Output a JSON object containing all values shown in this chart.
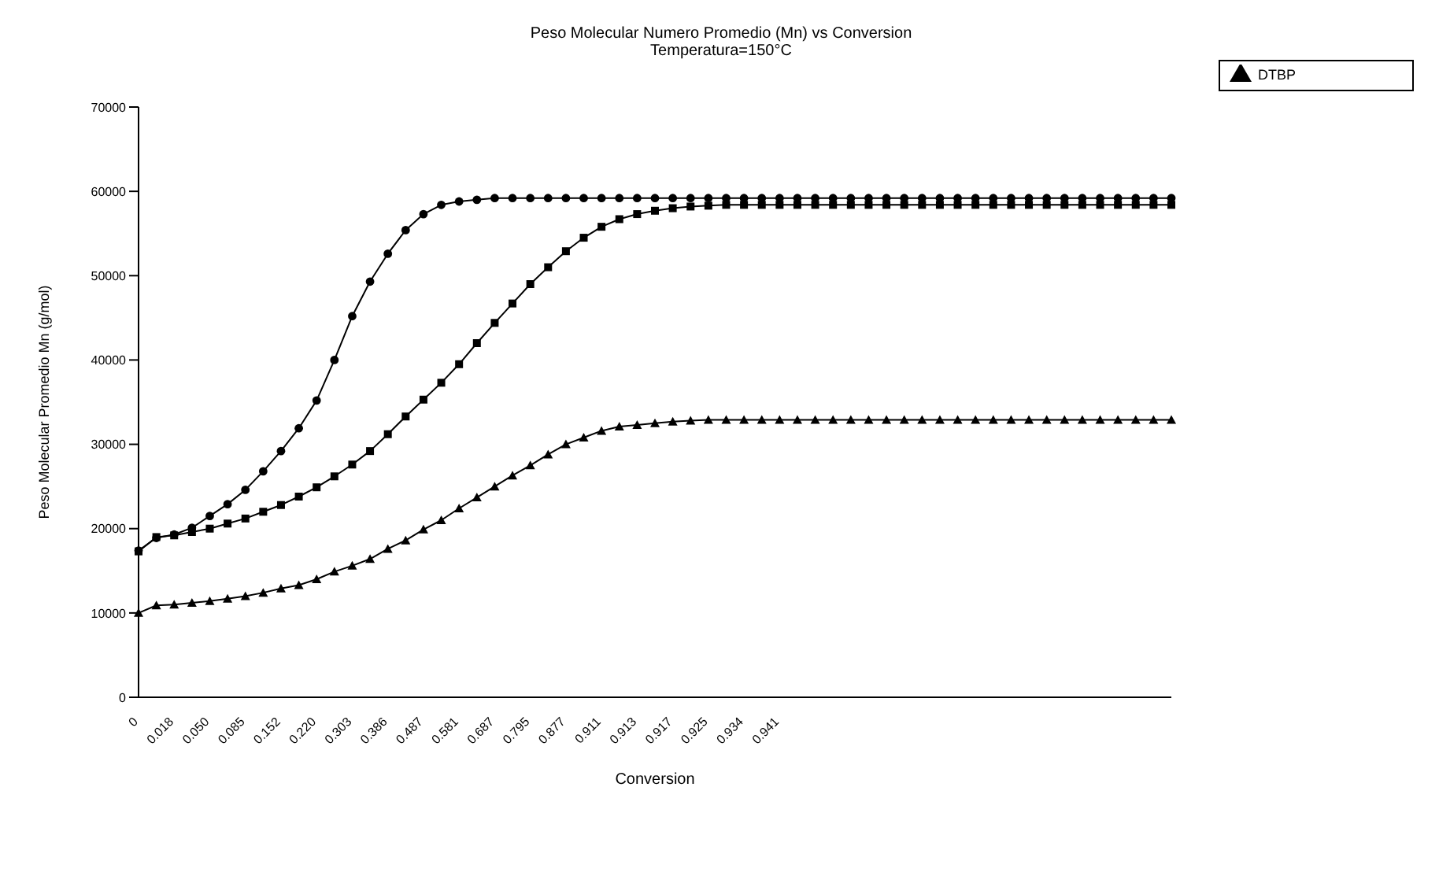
{
  "chart_data": {
    "type": "line",
    "title": "Peso Molecular Numero Promedio (Mn) vs Conversion",
    "subtitle": "Temperatura=150°C",
    "xlabel": "Conversion",
    "ylabel": "Peso Molecular Promedio Mn (g/mol)",
    "categories": [
      "0",
      null,
      "0.018",
      null,
      "0.050",
      null,
      "0.085",
      null,
      "0.152",
      null,
      "0.220",
      null,
      "0.303",
      null,
      "0.386",
      null,
      "0.487",
      null,
      "0.581",
      null,
      "0.687",
      null,
      "0.795",
      null,
      "0.877",
      null,
      "0.911",
      null,
      "0.913",
      null,
      "0.917",
      null,
      "0.925",
      null,
      "0.934",
      null,
      "0.941",
      null,
      null,
      null,
      null,
      null,
      null,
      null,
      null,
      null,
      null,
      null,
      null,
      null,
      null,
      null,
      null,
      null,
      null,
      null,
      null,
      null,
      null
    ],
    "series": [
      {
        "color": "#000000",
        "marker": "square",
        "values": [
          17300,
          19000,
          19200,
          19600,
          20000,
          20600,
          21200,
          22000,
          22800,
          23800,
          24900,
          26200,
          27600,
          29200,
          31200,
          33300,
          35300,
          37300,
          39500,
          42000,
          44400,
          46700,
          49000,
          51000,
          52900,
          54500,
          55800,
          56700,
          57300,
          57700,
          58000,
          58200,
          58300,
          58400,
          58400,
          58400,
          58400,
          58400,
          58400,
          58400,
          58400,
          58400,
          58400,
          58400,
          58400,
          58400,
          58400,
          58400,
          58400,
          58400,
          58400,
          58400,
          58400,
          58400,
          58400,
          58400,
          58400,
          58400,
          58400
        ]
      },
      {
        "name": "DTBP",
        "color": "#000000",
        "marker": "triangle",
        "values": [
          10000,
          10900,
          11000,
          11200,
          11400,
          11700,
          12000,
          12400,
          12900,
          13300,
          14000,
          14900,
          15600,
          16400,
          17600,
          18600,
          19900,
          21000,
          22400,
          23700,
          25000,
          26300,
          27500,
          28800,
          30000,
          30800,
          31600,
          32100,
          32300,
          32500,
          32700,
          32800,
          32900,
          32900,
          32900,
          32900,
          32900,
          32900,
          32900,
          32900,
          32900,
          32900,
          32900,
          32900,
          32900,
          32900,
          32900,
          32900,
          32900,
          32900,
          32900,
          32900,
          32900,
          32900,
          32900,
          32900,
          32900,
          32900,
          32900
        ]
      },
      {
        "color": "#000000",
        "marker": "circle",
        "values": [
          17400,
          18900,
          19300,
          20100,
          21500,
          22900,
          24600,
          26800,
          29200,
          31900,
          35200,
          40000,
          45200,
          49300,
          52600,
          55400,
          57300,
          58400,
          58800,
          59000,
          59200,
          59200,
          59200,
          59200,
          59200,
          59200,
          59200,
          59200,
          59200,
          59200,
          59200,
          59200,
          59200,
          59200,
          59200,
          59200,
          59200,
          59200,
          59200,
          59200,
          59200,
          59200,
          59200,
          59200,
          59200,
          59200,
          59200,
          59200,
          59200,
          59200,
          59200,
          59200,
          59200,
          59200,
          59200,
          59200,
          59200,
          59200,
          59200
        ]
      }
    ],
    "ylim": [
      0,
      70000
    ],
    "yticks": [
      0,
      10000,
      20000,
      30000,
      40000,
      50000,
      60000,
      70000
    ],
    "legend": "top right"
  }
}
